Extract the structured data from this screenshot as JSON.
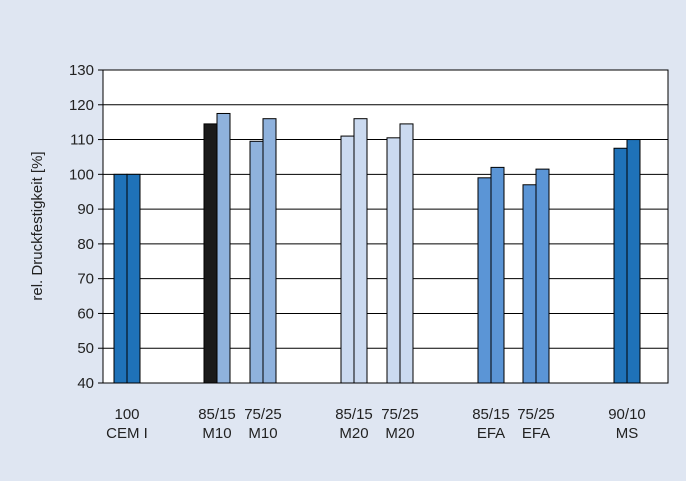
{
  "chart_data": {
    "type": "bar",
    "ylabel": "rel. Druckfestigkeit [%]",
    "ylim": [
      40,
      130
    ],
    "yticks": [
      40,
      50,
      60,
      70,
      80,
      90,
      100,
      110,
      120,
      130
    ],
    "grid": true,
    "legend": "none",
    "categories": [
      {
        "line1": "100",
        "line2": "CEM I"
      },
      {
        "line1": "85/15",
        "line2": "M10"
      },
      {
        "line1": "75/25",
        "line2": "M10"
      },
      {
        "line1": "85/15",
        "line2": "M20"
      },
      {
        "line1": "75/25",
        "line2": "M20"
      },
      {
        "line1": "85/15",
        "line2": "EFA"
      },
      {
        "line1": "75/25",
        "line2": "EFA"
      },
      {
        "line1": "90/10",
        "line2": "MS"
      }
    ],
    "bars": [
      {
        "category": 0,
        "values": [
          100,
          100
        ],
        "colors": [
          "#1f72b8",
          "#1f72b8"
        ]
      },
      {
        "category": 1,
        "values": [
          114.5,
          117.5
        ],
        "colors": [
          "#1b1b1b",
          "#8fb2dd"
        ]
      },
      {
        "category": 2,
        "values": [
          109.5,
          116
        ],
        "colors": [
          "#8fb2dd",
          "#8fb2dd"
        ]
      },
      {
        "category": 3,
        "values": [
          111,
          116
        ],
        "colors": [
          "#cbdaf0",
          "#cbdaf0"
        ]
      },
      {
        "category": 4,
        "values": [
          110.5,
          114.5
        ],
        "colors": [
          "#cbdaf0",
          "#cbdaf0"
        ]
      },
      {
        "category": 5,
        "values": [
          99,
          102
        ],
        "colors": [
          "#5b95d6",
          "#5b95d6"
        ]
      },
      {
        "category": 6,
        "values": [
          97,
          101.5
        ],
        "colors": [
          "#5b95d6",
          "#5b95d6"
        ]
      },
      {
        "category": 7,
        "values": [
          107.5,
          110
        ],
        "colors": [
          "#1f72b8",
          "#1f72b8"
        ]
      }
    ]
  }
}
